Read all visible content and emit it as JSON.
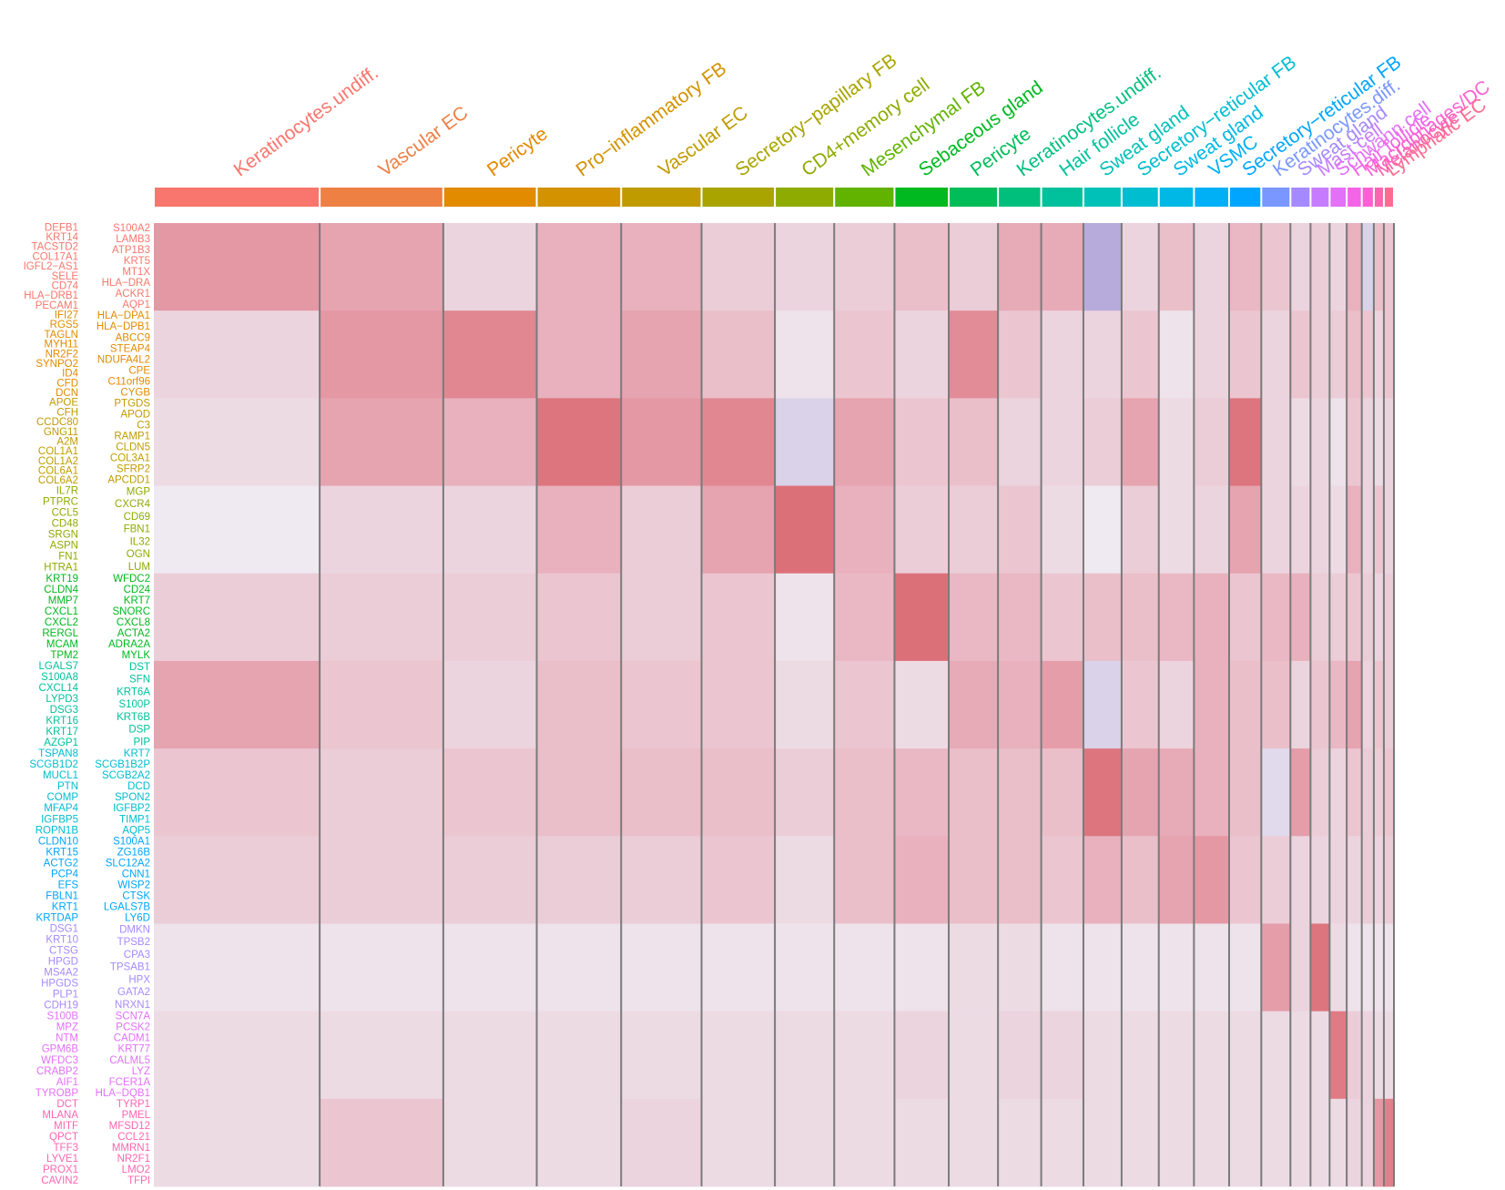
{
  "chart_data": {
    "type": "heatmap",
    "clusters": [
      {
        "name": "Keratinocytes.undiff.",
        "color": "#F8766D",
        "cells": 165
      },
      {
        "name": "Vascular EC",
        "color": "#EE8044",
        "cells": 123
      },
      {
        "name": "Pericyte",
        "color": "#E28A00",
        "cells": 93
      },
      {
        "name": "Pro−inflammatory FB",
        "color": "#D39200",
        "cells": 84
      },
      {
        "name": "Vascular EC",
        "color": "#C09B00",
        "cells": 80
      },
      {
        "name": "Secretory−papillary FB",
        "color": "#A9A400",
        "cells": 73
      },
      {
        "name": "CD4+memory cell",
        "color": "#8DAB00",
        "cells": 59
      },
      {
        "name": "Mesenchymal FB",
        "color": "#62B200",
        "cells": 60
      },
      {
        "name": "Sebaceous gland",
        "color": "#00B81F",
        "cells": 54
      },
      {
        "name": "Pericyte",
        "color": "#00BC59",
        "cells": 49
      },
      {
        "name": "Keratinocytes.undiff.",
        "color": "#00BF7D",
        "cells": 43
      },
      {
        "name": "Hair follicle",
        "color": "#00C19C",
        "cells": 42
      },
      {
        "name": "Sweat gland",
        "color": "#00C1B8",
        "cells": 38
      },
      {
        "name": "Secretory−reticular FB",
        "color": "#00BDD0",
        "cells": 37
      },
      {
        "name": "Sweat gland",
        "color": "#00B8E5",
        "cells": 35
      },
      {
        "name": "VSMC",
        "color": "#00B0F6",
        "cells": 35
      },
      {
        "name": "Secretory−reticular FB",
        "color": "#00A5FF",
        "cells": 32
      },
      {
        "name": "Keratinocytes.diff.",
        "color": "#7997FF",
        "cells": 29
      },
      {
        "name": "Sweat gland",
        "color": "#A58AFF",
        "cells": 20
      },
      {
        "name": "Mast cell",
        "color": "#C77CFF",
        "cells": 19
      },
      {
        "name": "Schwann cell",
        "color": "#E270F8",
        "cells": 17
      },
      {
        "name": "Hair follicle",
        "color": "#F265E7",
        "cells": 15
      },
      {
        "name": "Macrophages/DC",
        "color": "#FC61D3",
        "cells": 12
      },
      {
        "name": "Melanocyte",
        "color": "#FF64B0",
        "cells": 10
      },
      {
        "name": "Lymphatic EC",
        "color": "#FF6C91",
        "cells": 10
      }
    ],
    "color_scale": [
      {
        "value": -1,
        "color": "#a99bd6"
      },
      {
        "value": 0,
        "color": "#efe9f1"
      },
      {
        "value": 1,
        "color": "#e6a3b0"
      },
      {
        "value": 2,
        "color": "#db6a72"
      }
    ],
    "rows": [
      {
        "color": "#F8766D",
        "left": [
          "DEFB1",
          "KRT14",
          "TACSTD2",
          "COL17A1",
          "IGFL2−AS1",
          "SELE",
          "CD74",
          "HLA−DRB1",
          "PECAM1"
        ],
        "right": [
          "S100A2",
          "LAMB3",
          "ATP1B3",
          "KRT5",
          "MT1X",
          "HLA−DRA",
          "ACKR1",
          "AQP1"
        ],
        "values": [
          1.2,
          1.0,
          0.3,
          0.8,
          0.8,
          0.4,
          0.3,
          0.4,
          0.6,
          0.4,
          0.9,
          0.9,
          -0.8,
          0.3,
          0.6,
          0.3,
          0.7,
          0.5,
          0.3,
          0.4,
          0.3,
          0.8,
          -0.3,
          0.6,
          0.5
        ]
      },
      {
        "color": "#E28A00",
        "left": [
          "IFI27",
          "RGS5",
          "TAGLN",
          "MYH11",
          "NR2F2",
          "SYNPO2",
          "ID4",
          "CFD",
          "DCN"
        ],
        "right": [
          "HLA−DPA1",
          "HLA−DPB1",
          "ABCC9",
          "STEAP4",
          "NDUFA4L2",
          "CPE",
          "C11orf96",
          "CYGB"
        ],
        "values": [
          0.3,
          1.2,
          1.5,
          0.8,
          1.0,
          0.6,
          0.1,
          0.5,
          0.3,
          1.4,
          0.5,
          0.3,
          0.3,
          0.5,
          0.1,
          0.3,
          0.5,
          0.3,
          0.5,
          0.4,
          0.4,
          0.6,
          0.5,
          0.3,
          0.5
        ]
      },
      {
        "color": "#C09B00",
        "left": [
          "APOE",
          "CFH",
          "CCDC80",
          "GNG11",
          "A2M",
          "COL1A1",
          "COL1A2",
          "COL6A1",
          "COL6A2"
        ],
        "right": [
          "PTGDS",
          "APOD",
          "C3",
          "RAMP1",
          "CLDN5",
          "COL3A1",
          "SFRP2",
          "APCDD1"
        ],
        "values": [
          0.2,
          1.0,
          0.8,
          1.8,
          1.2,
          1.5,
          -0.3,
          1.0,
          0.5,
          0.6,
          0.3,
          0.3,
          0.4,
          1.0,
          0.2,
          0.4,
          1.8,
          0.3,
          0.2,
          0.3,
          0.1,
          0.5,
          0.3,
          0.2,
          0.3
        ]
      },
      {
        "color": "#8DAB00",
        "left": [
          "IL7R",
          "PTPRC",
          "CCL5",
          "CD48",
          "SRGN",
          "ASPN",
          "FN1",
          "HTRA1"
        ],
        "right": [
          "MGP",
          "CXCR4",
          "CD69",
          "FBN1",
          "IL32",
          "OGN",
          "LUM"
        ],
        "values": [
          0.0,
          0.3,
          0.3,
          0.8,
          0.4,
          1.0,
          1.9,
          0.8,
          0.4,
          0.4,
          0.5,
          0.2,
          0.0,
          0.4,
          0.2,
          0.3,
          1.0,
          0.3,
          0.3,
          0.3,
          0.2,
          0.8,
          0.3,
          0.5,
          0.3
        ]
      },
      {
        "color": "#00B81F",
        "left": [
          "KRT19",
          "CLDN4",
          "MMP7",
          "CXCL1",
          "CXCL2",
          "RERGL",
          "MCAM",
          "TPM2"
        ],
        "right": [
          "WFDC2",
          "CD24",
          "KRT7",
          "SNORC",
          "CXCL8",
          "ACTA2",
          "ADRA2A",
          "MYLK"
        ],
        "values": [
          0.4,
          0.4,
          0.4,
          0.5,
          0.4,
          0.5,
          0.1,
          0.7,
          1.9,
          0.7,
          0.7,
          0.5,
          0.6,
          0.6,
          0.7,
          0.8,
          0.5,
          0.7,
          0.8,
          0.4,
          0.4,
          0.5,
          0.4,
          0.3,
          0.4
        ]
      },
      {
        "color": "#00C19C",
        "left": [
          "LGALS7",
          "S100A8",
          "CXCL14",
          "LYPD3",
          "DSG3",
          "KRT16",
          "KRT17",
          "AZGP1"
        ],
        "right": [
          "DST",
          "SFN",
          "KRT6A",
          "S100P",
          "KRT6B",
          "DSP",
          "PIP"
        ],
        "values": [
          1.0,
          0.5,
          0.3,
          0.6,
          0.5,
          0.5,
          0.2,
          0.5,
          0.2,
          0.9,
          0.8,
          1.1,
          -0.3,
          0.5,
          0.3,
          0.8,
          0.6,
          0.6,
          0.3,
          0.5,
          0.7,
          1.0,
          0.3,
          0.5,
          0.4
        ]
      },
      {
        "color": "#00BDD0",
        "left": [
          "TSPAN8",
          "SCGB1D2",
          "MUCL1",
          "PTN",
          "COMP",
          "MFAP4",
          "IGFBP5",
          "ROPN1B"
        ],
        "right": [
          "KRT7",
          "SCGB1B2P",
          "SCGB2A2",
          "DCD",
          "SPON2",
          "IGFBP2",
          "TIMP1",
          "AQP5"
        ],
        "values": [
          0.5,
          0.4,
          0.5,
          0.6,
          0.6,
          0.6,
          0.4,
          0.6,
          0.7,
          0.6,
          0.6,
          0.6,
          1.8,
          1.0,
          0.9,
          0.8,
          0.6,
          -0.2,
          1.1,
          0.4,
          0.3,
          0.5,
          0.4,
          0.4,
          0.5
        ]
      },
      {
        "color": "#00A5FF",
        "left": [
          "CLDN10",
          "KRT15",
          "ACTG2",
          "PCP4",
          "EFS",
          "FBLN1",
          "KRT1",
          "KRTDAP"
        ],
        "right": [
          "S100A1",
          "ZG16B",
          "SLC12A2",
          "CNN1",
          "WISP2",
          "CTSK",
          "LGALS7B",
          "LY6D"
        ],
        "values": [
          0.4,
          0.4,
          0.4,
          0.4,
          0.4,
          0.5,
          0.2,
          0.6,
          0.8,
          0.6,
          0.6,
          0.5,
          0.8,
          0.6,
          1.0,
          1.2,
          0.5,
          0.4,
          0.3,
          0.3,
          0.3,
          0.3,
          0.4,
          0.3,
          0.4
        ]
      },
      {
        "color": "#A58AFF",
        "left": [
          "DSG1",
          "KRT10",
          "CTSG",
          "HPGD",
          "MS4A2",
          "HPGDS",
          "PLP1",
          "CDH19"
        ],
        "right": [
          "DMKN",
          "TPSB2",
          "CPA3",
          "TPSAB1",
          "HPX",
          "GATA2",
          "NRXN1"
        ],
        "values": [
          0.1,
          0.1,
          0.1,
          0.1,
          0.1,
          0.1,
          0.1,
          0.1,
          0.1,
          0.2,
          0.2,
          0.1,
          0.1,
          0.1,
          0.1,
          0.1,
          0.1,
          1.1,
          0.3,
          1.8,
          0.2,
          0.1,
          0.1,
          0.1,
          0.1
        ]
      },
      {
        "color": "#E270F8",
        "left": [
          "S100B",
          "MPZ",
          "NTM",
          "GPM6B",
          "WFDC3",
          "CRABP2",
          "AIF1",
          "TYROBP"
        ],
        "right": [
          "SCN7A",
          "PCSK2",
          "CADM1",
          "KRT77",
          "CALML5",
          "LYZ",
          "FCER1A",
          "HLA−DQB1"
        ],
        "values": [
          0.2,
          0.2,
          0.2,
          0.2,
          0.2,
          0.2,
          0.2,
          0.2,
          0.3,
          0.2,
          0.3,
          0.3,
          0.2,
          0.2,
          0.2,
          0.2,
          0.2,
          0.2,
          0.2,
          0.2,
          1.7,
          0.4,
          0.3,
          0.2,
          0.2
        ]
      },
      {
        "color": "#FF64B0",
        "left": [
          "DCT",
          "MLANA",
          "MITF",
          "QPCT",
          "TFF3",
          "LYVE1",
          "PROX1",
          "CAVIN2"
        ],
        "right": [
          "TYRP1",
          "PMEL",
          "MFSD12",
          "CCL21",
          "MMRN1",
          "NR2F1",
          "LMO2",
          "TFPI"
        ],
        "values": [
          0.2,
          0.5,
          0.2,
          0.2,
          0.3,
          0.2,
          0.2,
          0.2,
          0.2,
          0.2,
          0.2,
          0.2,
          0.2,
          0.2,
          0.2,
          0.2,
          0.2,
          0.2,
          0.2,
          0.2,
          0.2,
          0.3,
          0.3,
          1.2,
          1.6
        ]
      }
    ]
  }
}
